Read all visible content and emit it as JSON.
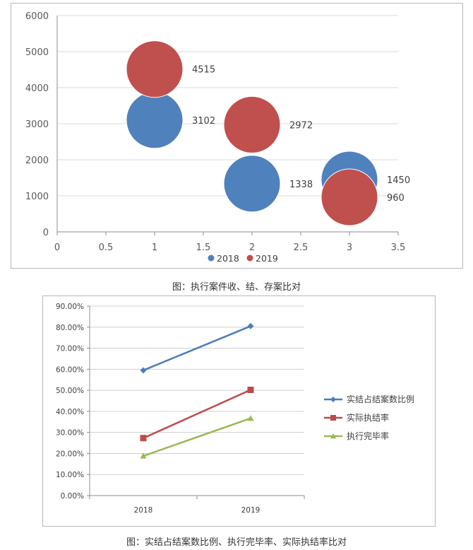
{
  "charts": [
    {
      "caption": "图：执行案件收、结、存案比对",
      "chart_data": {
        "type": "bubble",
        "xlim": [
          0,
          3.5
        ],
        "ylim": [
          0,
          6000
        ],
        "x_ticks": [
          "0",
          "0.5",
          "1",
          "1.5",
          "2",
          "2.5",
          "3",
          "3.5"
        ],
        "y_ticks": [
          "0",
          "1000",
          "2000",
          "3000",
          "4000",
          "5000",
          "6000"
        ],
        "grid": true,
        "legend_position": "bottom",
        "series": [
          {
            "name": "2018",
            "color": "#4f81bd",
            "points": [
              {
                "x": 1,
                "y": 3102,
                "label": "3102"
              },
              {
                "x": 2,
                "y": 1338,
                "label": "1338"
              },
              {
                "x": 3,
                "y": 1450,
                "label": "1450"
              }
            ]
          },
          {
            "name": "2019",
            "color": "#c0504d",
            "points": [
              {
                "x": 1,
                "y": 4515,
                "label": "4515"
              },
              {
                "x": 2,
                "y": 2972,
                "label": "2972"
              },
              {
                "x": 3,
                "y": 960,
                "label": "960"
              }
            ]
          }
        ]
      }
    },
    {
      "caption": "图：实结占结案数比例、执行完毕率、实际执结率比对",
      "chart_data": {
        "type": "line",
        "categories": [
          "2018",
          "2019"
        ],
        "ylim": [
          0,
          90
        ],
        "y_ticks": [
          "0.00%",
          "10.00%",
          "20.00%",
          "30.00%",
          "40.00%",
          "50.00%",
          "60.00%",
          "70.00%",
          "80.00%",
          "90.00%"
        ],
        "grid": true,
        "legend_position": "right",
        "series": [
          {
            "name": "实结占结案数比例",
            "color": "#4a7ebb",
            "marker": "diamond",
            "values": [
              59.5,
              80.5
            ]
          },
          {
            "name": "实际执结率",
            "color": "#be4b48",
            "marker": "square",
            "values": [
              27.3,
              50.2
            ]
          },
          {
            "name": "执行完毕率",
            "color": "#98b954",
            "marker": "triangle",
            "values": [
              18.8,
              36.7
            ]
          }
        ]
      }
    }
  ]
}
